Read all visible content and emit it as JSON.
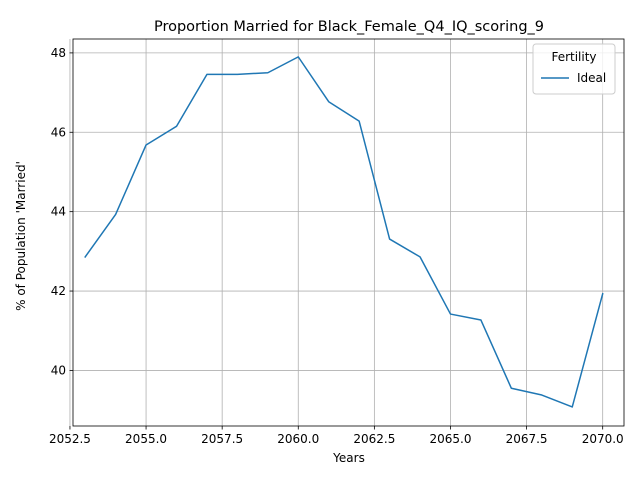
{
  "chart_data": {
    "type": "line",
    "title": "Proportion Married for Black_Female_Q4_IQ_scoring_9",
    "xlabel": "Years",
    "ylabel": "% of Population 'Married'",
    "xlim": [
      2052.6,
      2070.7
    ],
    "ylim": [
      38.6,
      48.35
    ],
    "x_ticks": [
      2052.5,
      2055.0,
      2057.5,
      2060.0,
      2062.5,
      2065.0,
      2067.5,
      2070.0
    ],
    "x_tick_labels": [
      "2052.5",
      "2055.0",
      "2057.5",
      "2060.0",
      "2062.5",
      "2065.0",
      "2067.5",
      "2070.0"
    ],
    "y_ticks": [
      40,
      42,
      44,
      46,
      48
    ],
    "y_tick_labels": [
      "40",
      "42",
      "44",
      "46",
      "48"
    ],
    "grid": true,
    "legend": {
      "title": "Fertility",
      "placement": "top-right"
    },
    "series": [
      {
        "name": "Ideal",
        "color": "#1f77b4",
        "x": [
          2053,
          2054,
          2055,
          2056,
          2057,
          2058,
          2059,
          2060,
          2061,
          2062,
          2063,
          2064,
          2065,
          2066,
          2067,
          2068,
          2069,
          2070
        ],
        "values": [
          42.86,
          43.93,
          45.68,
          46.15,
          47.46,
          47.46,
          47.5,
          47.9,
          46.77,
          46.28,
          43.31,
          42.86,
          41.42,
          41.27,
          39.55,
          39.38,
          39.08,
          41.93
        ]
      }
    ]
  }
}
